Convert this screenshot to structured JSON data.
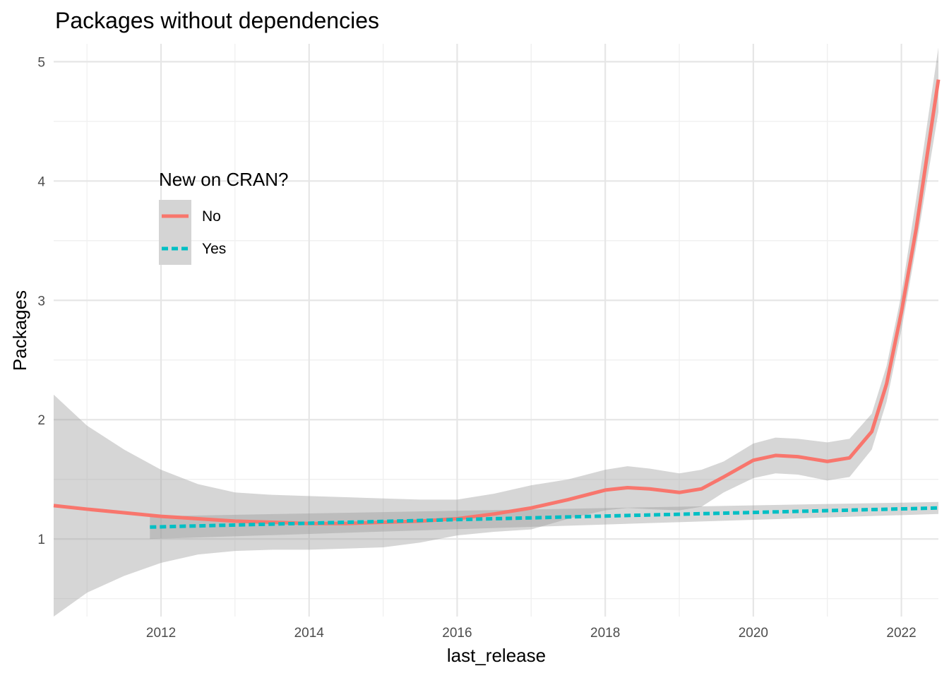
{
  "chart_data": {
    "type": "line",
    "title": "Packages without dependencies",
    "xlabel": "last_release",
    "ylabel": "Packages",
    "xlim": [
      2010.55,
      2022.5
    ],
    "ylim": [
      0.35,
      5.15
    ],
    "x_ticks": [
      2012,
      2014,
      2016,
      2018,
      2020,
      2022
    ],
    "x_tick_labels": [
      "2012",
      "2014",
      "2016",
      "2018",
      "2020",
      "2022"
    ],
    "y_ticks": [
      1,
      2,
      3,
      4,
      5
    ],
    "y_tick_labels": [
      "1",
      "2",
      "3",
      "4",
      "5"
    ],
    "grid": true,
    "legend": {
      "title": "New on CRAN?",
      "placement": "top-left inside",
      "entries": [
        "No",
        "Yes"
      ]
    },
    "series": [
      {
        "name": "No",
        "color": "#F8766D",
        "line_style": "solid",
        "x": [
          2010.55,
          2011.0,
          2011.5,
          2012.0,
          2012.5,
          2013.0,
          2013.5,
          2014.0,
          2014.5,
          2015.0,
          2015.5,
          2016.0,
          2016.5,
          2017.0,
          2017.5,
          2018.0,
          2018.3,
          2018.6,
          2019.0,
          2019.3,
          2019.6,
          2020.0,
          2020.3,
          2020.6,
          2021.0,
          2021.3,
          2021.6,
          2021.8,
          2022.0,
          2022.2,
          2022.5
        ],
        "y": [
          1.28,
          1.25,
          1.22,
          1.19,
          1.17,
          1.15,
          1.14,
          1.13,
          1.13,
          1.14,
          1.15,
          1.17,
          1.21,
          1.26,
          1.33,
          1.41,
          1.43,
          1.42,
          1.39,
          1.42,
          1.52,
          1.66,
          1.7,
          1.69,
          1.65,
          1.68,
          1.9,
          2.3,
          2.9,
          3.6,
          4.85
        ],
        "ci_upper": [
          2.21,
          1.95,
          1.75,
          1.58,
          1.46,
          1.39,
          1.37,
          1.36,
          1.35,
          1.34,
          1.33,
          1.33,
          1.38,
          1.45,
          1.5,
          1.58,
          1.61,
          1.59,
          1.55,
          1.58,
          1.65,
          1.8,
          1.85,
          1.84,
          1.81,
          1.84,
          2.05,
          2.45,
          3.05,
          3.85,
          5.12
        ],
        "ci_lower": [
          0.35,
          0.55,
          0.69,
          0.8,
          0.87,
          0.9,
          0.91,
          0.91,
          0.92,
          0.93,
          0.97,
          1.03,
          1.06,
          1.08,
          1.17,
          1.24,
          1.26,
          1.25,
          1.24,
          1.27,
          1.39,
          1.51,
          1.55,
          1.54,
          1.49,
          1.52,
          1.75,
          2.15,
          2.75,
          3.45,
          4.58
        ]
      },
      {
        "name": "Yes",
        "color": "#00BFC4",
        "line_style": "dashed",
        "x": [
          2011.85,
          2022.5
        ],
        "y": [
          1.1,
          1.26
        ],
        "ci_upper": [
          1.19,
          1.31
        ],
        "ci_lower": [
          1.0,
          1.21
        ]
      }
    ]
  }
}
